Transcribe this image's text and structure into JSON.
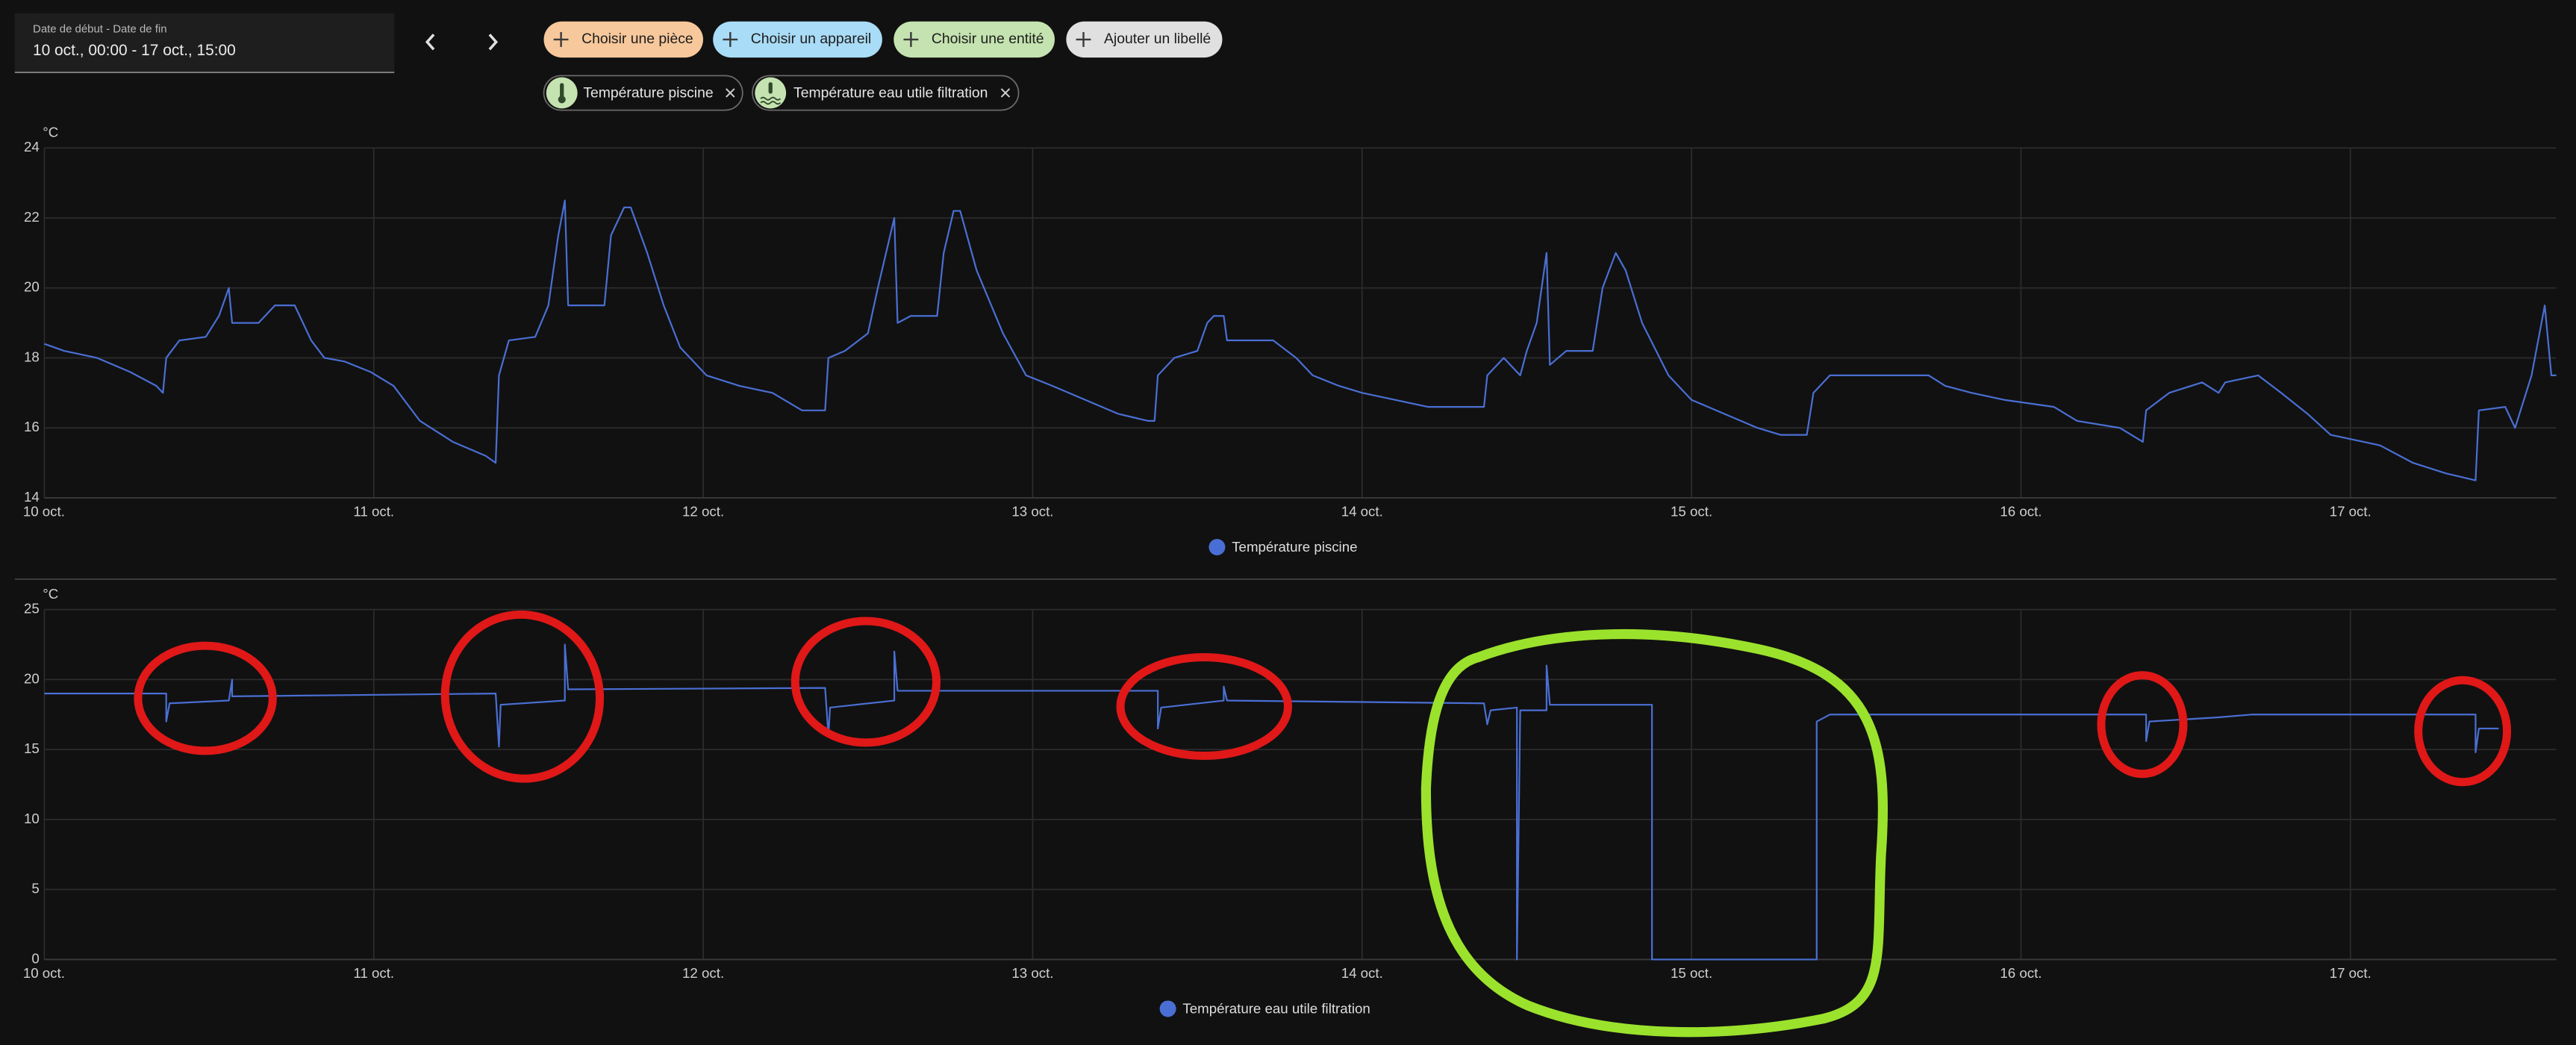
{
  "toolbar": {
    "date_range": {
      "label": "Date de début - Date de fin",
      "value": "10 oct., 00:00 - 17 oct., 15:00"
    },
    "filter_buttons": [
      "Choisir une pièce",
      "Choisir un appareil",
      "Choisir une entité",
      "Ajouter un libellé"
    ],
    "selected_entities": [
      "Température piscine",
      "Température eau utile filtration"
    ]
  },
  "chart_data": [
    {
      "type": "line",
      "y_label": "°C",
      "xlim": [
        0,
        7.625
      ],
      "xticks": [
        {
          "value": 0,
          "label": "10 oct."
        },
        {
          "value": 1,
          "label": "11 oct."
        },
        {
          "value": 2,
          "label": "12 oct."
        },
        {
          "value": 3,
          "label": "13 oct."
        },
        {
          "value": 4,
          "label": "14 oct."
        },
        {
          "value": 5,
          "label": "15 oct."
        },
        {
          "value": 6,
          "label": "16 oct."
        },
        {
          "value": 7,
          "label": "17 oct."
        }
      ],
      "ylim": [
        14,
        24
      ],
      "yticks": [
        14,
        16,
        18,
        20,
        22,
        24
      ],
      "grid": true,
      "legend": "bottom",
      "x": [
        0,
        0.06,
        0.16,
        0.26,
        0.34,
        0.36,
        0.37,
        0.41,
        0.49,
        0.53,
        0.56,
        0.57,
        0.65,
        0.7,
        0.76,
        0.81,
        0.85,
        0.91,
        0.99,
        1.06,
        1.14,
        1.24,
        1.34,
        1.37,
        1.38,
        1.41,
        1.49,
        1.53,
        1.56,
        1.58,
        1.59,
        1.64,
        1.7,
        1.72,
        1.76,
        1.78,
        1.83,
        1.88,
        1.93,
        2.01,
        2.11,
        2.21,
        2.3,
        2.37,
        2.38,
        2.43,
        2.5,
        2.53,
        2.58,
        2.59,
        2.63,
        2.71,
        2.73,
        2.76,
        2.78,
        2.83,
        2.91,
        2.98,
        3.06,
        3.16,
        3.26,
        3.35,
        3.37,
        3.38,
        3.43,
        3.5,
        3.53,
        3.55,
        3.58,
        3.59,
        3.73,
        3.8,
        3.85,
        3.93,
        4.0,
        4.1,
        4.2,
        4.37,
        4.38,
        4.43,
        4.48,
        4.5,
        4.53,
        4.56,
        4.57,
        4.62,
        4.7,
        4.73,
        4.77,
        4.8,
        4.85,
        4.93,
        5.0,
        5.1,
        5.2,
        5.27,
        5.35,
        5.37,
        5.42,
        5.6,
        5.72,
        5.77,
        5.85,
        5.95,
        6.1,
        6.17,
        6.3,
        6.37,
        6.38,
        6.45,
        6.55,
        6.6,
        6.62,
        6.72,
        6.79,
        6.87,
        6.94,
        7.09,
        7.19,
        7.29,
        7.38,
        7.39,
        7.47,
        7.5,
        7.55,
        7.59,
        7.61,
        7.625
      ],
      "series": [
        {
          "name": "Température piscine",
          "color": "#4a6fd4",
          "values": [
            18.4,
            18.2,
            18.0,
            17.6,
            17.2,
            17.0,
            18.0,
            18.5,
            18.6,
            19.2,
            20.0,
            19.0,
            19.0,
            19.5,
            19.5,
            18.5,
            18.0,
            17.9,
            17.6,
            17.2,
            16.2,
            15.6,
            15.2,
            15.0,
            17.5,
            18.5,
            18.6,
            19.5,
            21.5,
            22.5,
            19.5,
            19.5,
            19.5,
            21.5,
            22.3,
            22.3,
            21.0,
            19.5,
            18.3,
            17.5,
            17.2,
            17.0,
            16.5,
            16.5,
            18.0,
            18.2,
            18.7,
            20.0,
            22.0,
            19.0,
            19.2,
            19.2,
            21.0,
            22.2,
            22.2,
            20.5,
            18.7,
            17.5,
            17.2,
            16.8,
            16.4,
            16.2,
            16.2,
            17.5,
            18.0,
            18.2,
            19.0,
            19.2,
            19.2,
            18.5,
            18.5,
            18.0,
            17.5,
            17.2,
            17.0,
            16.8,
            16.6,
            16.6,
            17.5,
            18.0,
            17.5,
            18.2,
            19.0,
            21.0,
            17.8,
            18.2,
            18.2,
            20.0,
            21.0,
            20.5,
            19.0,
            17.5,
            16.8,
            16.4,
            16.0,
            15.8,
            15.8,
            17.0,
            17.5,
            17.5,
            17.5,
            17.2,
            17.0,
            16.8,
            16.6,
            16.2,
            16.0,
            15.6,
            16.5,
            17.0,
            17.3,
            17.0,
            17.3,
            17.5,
            17.0,
            16.4,
            15.8,
            15.5,
            15.0,
            14.7,
            14.5,
            16.5,
            16.6,
            16.0,
            17.5,
            19.5,
            17.5,
            17.5
          ]
        }
      ]
    },
    {
      "type": "line",
      "y_label": "°C",
      "xlim": [
        0,
        7.625
      ],
      "xticks": [
        {
          "value": 0,
          "label": "10 oct."
        },
        {
          "value": 1,
          "label": "11 oct."
        },
        {
          "value": 2,
          "label": "12 oct."
        },
        {
          "value": 3,
          "label": "13 oct."
        },
        {
          "value": 4,
          "label": "14 oct."
        },
        {
          "value": 5,
          "label": "15 oct."
        },
        {
          "value": 6,
          "label": "16 oct."
        },
        {
          "value": 7,
          "label": "17 oct."
        }
      ],
      "ylim": [
        0,
        25
      ],
      "yticks": [
        0,
        5,
        10,
        15,
        20,
        25
      ],
      "grid": true,
      "legend": "bottom",
      "x": [
        0,
        0.37,
        0.37,
        0.38,
        0.56,
        0.57,
        0.57,
        1.37,
        1.38,
        1.385,
        1.58,
        1.58,
        1.59,
        2.37,
        2.38,
        2.385,
        2.58,
        2.58,
        2.59,
        3.38,
        3.38,
        3.39,
        3.58,
        3.58,
        3.59,
        4.37,
        4.38,
        4.39,
        4.47,
        4.47,
        4.48,
        4.56,
        4.56,
        4.57,
        4.88,
        4.88,
        5.38,
        5.38,
        5.42,
        6.38,
        6.38,
        6.39,
        6.6,
        6.7,
        7.38,
        7.38,
        7.39,
        7.45
      ],
      "series": [
        {
          "name": "Température eau utile filtration",
          "color": "#4a6fd4",
          "values": [
            19.0,
            19.0,
            17.0,
            18.3,
            18.5,
            20.0,
            18.8,
            19.0,
            15.2,
            18.2,
            18.5,
            22.5,
            19.3,
            19.4,
            16.0,
            18.0,
            18.5,
            22.0,
            19.2,
            19.2,
            16.5,
            18.0,
            18.5,
            19.5,
            18.5,
            18.3,
            16.8,
            17.8,
            18.0,
            0.0,
            17.8,
            17.8,
            21.0,
            18.2,
            18.2,
            0.0,
            0.0,
            17.0,
            17.5,
            17.5,
            15.6,
            17.0,
            17.3,
            17.5,
            17.5,
            14.8,
            16.5,
            16.5
          ]
        }
      ]
    }
  ]
}
